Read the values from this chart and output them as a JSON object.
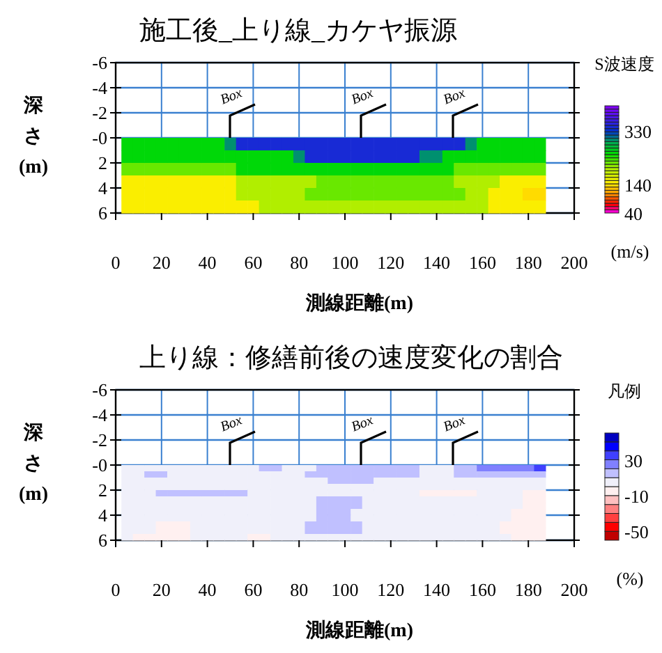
{
  "chart_data": [
    {
      "type": "heatmap",
      "title": "施工後_上り線_カケヤ振源",
      "xlabel": "測線距離(m)",
      "ylabel": "深さ(m)",
      "clabel": "S波速度(m/s)",
      "xlim": [
        0,
        200
      ],
      "xticks": [
        0,
        20,
        40,
        60,
        80,
        100,
        120,
        140,
        160,
        180,
        200
      ],
      "ylim": [
        6,
        -6
      ],
      "yticks": [
        -6,
        -4,
        -2,
        {
          "value": 0,
          "label": "-0"
        },
        2,
        4,
        6
      ],
      "grid": true,
      "clim": [
        40,
        420
      ],
      "cticks": [
        40,
        140,
        330
      ],
      "annotations": [
        "Box",
        "Box",
        "Box"
      ],
      "x": [
        5,
        10,
        15,
        20,
        25,
        30,
        35,
        40,
        45,
        50,
        55,
        60,
        65,
        70,
        75,
        80,
        85,
        90,
        95,
        100,
        105,
        110,
        115,
        120,
        125,
        130,
        135,
        140,
        145,
        150,
        155,
        160,
        165,
        170,
        175,
        180,
        185
      ],
      "y": [
        0.5,
        1.5,
        2.5,
        3.5,
        4.5,
        5.5
      ],
      "cells": [
        [
          250,
          250,
          250,
          250,
          250,
          250,
          250,
          250,
          250,
          300,
          340,
          340,
          340,
          340,
          340,
          340,
          340,
          340,
          340,
          340,
          340,
          340,
          340,
          340,
          340,
          340,
          340,
          340,
          340,
          340,
          300,
          250,
          250,
          250,
          250,
          250,
          250
        ],
        [
          250,
          250,
          250,
          250,
          250,
          250,
          250,
          250,
          250,
          250,
          250,
          250,
          250,
          250,
          250,
          300,
          340,
          340,
          340,
          340,
          340,
          340,
          340,
          340,
          340,
          340,
          300,
          300,
          250,
          250,
          250,
          250,
          250,
          250,
          250,
          250,
          250
        ],
        [
          220,
          220,
          220,
          220,
          220,
          220,
          220,
          220,
          220,
          220,
          250,
          250,
          250,
          250,
          250,
          250,
          250,
          250,
          250,
          250,
          250,
          250,
          250,
          250,
          250,
          250,
          250,
          250,
          250,
          220,
          220,
          220,
          220,
          220,
          220,
          220,
          220
        ],
        [
          150,
          150,
          150,
          150,
          150,
          150,
          150,
          150,
          150,
          150,
          190,
          190,
          190,
          190,
          190,
          190,
          190,
          220,
          220,
          220,
          220,
          220,
          220,
          220,
          220,
          220,
          220,
          220,
          220,
          190,
          190,
          190,
          190,
          150,
          150,
          150,
          150
        ],
        [
          150,
          150,
          150,
          150,
          150,
          150,
          150,
          150,
          150,
          150,
          190,
          190,
          190,
          190,
          190,
          190,
          220,
          220,
          220,
          220,
          220,
          220,
          220,
          220,
          220,
          220,
          220,
          220,
          220,
          220,
          190,
          190,
          150,
          150,
          150,
          140,
          140
        ],
        [
          150,
          150,
          150,
          150,
          150,
          150,
          150,
          150,
          150,
          150,
          150,
          150,
          190,
          190,
          190,
          190,
          190,
          190,
          190,
          190,
          190,
          190,
          190,
          190,
          190,
          190,
          190,
          190,
          190,
          190,
          190,
          190,
          150,
          150,
          150,
          150,
          150
        ]
      ]
    },
    {
      "type": "heatmap",
      "title": "上り線：修繕前後の速度変化の割合",
      "xlabel": "測線距離(m)",
      "ylabel": "深さ(m)",
      "clabel": "凡例(%)",
      "xlim": [
        0,
        200
      ],
      "xticks": [
        0,
        20,
        40,
        60,
        80,
        100,
        120,
        140,
        160,
        180,
        200
      ],
      "ylim": [
        6,
        -6
      ],
      "yticks": [
        -6,
        -4,
        -2,
        {
          "value": 0,
          "label": "-0"
        },
        2,
        4,
        6
      ],
      "grid": true,
      "clim": [
        -60,
        60
      ],
      "cticks": [
        -50,
        -10,
        30
      ],
      "annotations": [
        "Box",
        "Box",
        "Box"
      ],
      "x": [
        5,
        10,
        15,
        20,
        25,
        30,
        35,
        40,
        45,
        50,
        55,
        60,
        65,
        70,
        75,
        80,
        85,
        90,
        95,
        100,
        105,
        110,
        115,
        120,
        125,
        130,
        135,
        140,
        145,
        150,
        155,
        160,
        165,
        170,
        175,
        180,
        185
      ],
      "y": [
        0.25,
        0.75,
        1.25,
        1.75,
        2.25,
        2.75,
        3.25,
        3.75,
        4.25,
        4.75,
        5.25,
        5.75
      ],
      "cells": [
        [
          5,
          5,
          5,
          5,
          5,
          5,
          5,
          5,
          5,
          5,
          5,
          5,
          15,
          15,
          5,
          5,
          5,
          15,
          15,
          15,
          15,
          15,
          15,
          15,
          15,
          15,
          5,
          5,
          5,
          15,
          15,
          25,
          25,
          25,
          25,
          25,
          35
        ],
        [
          5,
          5,
          15,
          15,
          5,
          5,
          5,
          5,
          5,
          5,
          5,
          5,
          5,
          5,
          5,
          5,
          15,
          15,
          15,
          15,
          15,
          15,
          15,
          15,
          15,
          15,
          5,
          5,
          5,
          15,
          15,
          15,
          15,
          15,
          15,
          15,
          15
        ],
        [
          5,
          5,
          5,
          5,
          5,
          5,
          5,
          5,
          5,
          5,
          5,
          5,
          5,
          5,
          5,
          5,
          5,
          5,
          15,
          15,
          15,
          15,
          5,
          5,
          5,
          5,
          5,
          5,
          5,
          5,
          5,
          5,
          5,
          5,
          5,
          5,
          5
        ],
        [
          5,
          5,
          5,
          5,
          5,
          5,
          5,
          5,
          5,
          5,
          5,
          5,
          5,
          5,
          5,
          5,
          5,
          5,
          5,
          5,
          5,
          5,
          5,
          5,
          5,
          5,
          5,
          5,
          5,
          5,
          5,
          5,
          5,
          5,
          5,
          5,
          5
        ],
        [
          5,
          5,
          5,
          15,
          15,
          15,
          15,
          15,
          15,
          15,
          15,
          5,
          5,
          5,
          5,
          5,
          5,
          5,
          5,
          5,
          5,
          5,
          5,
          5,
          5,
          5,
          -5,
          -5,
          -5,
          -5,
          -5,
          5,
          5,
          5,
          5,
          -5,
          -5
        ],
        [
          5,
          5,
          5,
          5,
          5,
          5,
          5,
          5,
          5,
          5,
          5,
          5,
          5,
          5,
          5,
          5,
          5,
          15,
          15,
          15,
          15,
          5,
          5,
          5,
          5,
          5,
          5,
          5,
          5,
          5,
          5,
          5,
          5,
          5,
          5,
          -5,
          -5
        ],
        [
          5,
          5,
          5,
          5,
          5,
          5,
          5,
          5,
          5,
          5,
          5,
          5,
          5,
          5,
          5,
          5,
          5,
          15,
          15,
          15,
          15,
          5,
          5,
          5,
          5,
          5,
          5,
          5,
          5,
          5,
          5,
          5,
          5,
          5,
          5,
          -5,
          -5
        ],
        [
          5,
          5,
          5,
          5,
          5,
          5,
          5,
          5,
          5,
          5,
          5,
          5,
          5,
          5,
          5,
          5,
          5,
          15,
          15,
          15,
          5,
          5,
          5,
          5,
          5,
          5,
          5,
          5,
          5,
          5,
          5,
          5,
          5,
          5,
          -5,
          -5,
          -5
        ],
        [
          5,
          5,
          5,
          5,
          5,
          5,
          5,
          5,
          5,
          5,
          5,
          5,
          5,
          5,
          5,
          5,
          5,
          15,
          15,
          15,
          5,
          5,
          5,
          5,
          5,
          5,
          5,
          5,
          5,
          5,
          5,
          5,
          5,
          5,
          -5,
          -5,
          -5
        ],
        [
          5,
          5,
          5,
          -5,
          -5,
          -5,
          5,
          5,
          5,
          5,
          5,
          5,
          5,
          5,
          5,
          5,
          15,
          15,
          15,
          15,
          15,
          5,
          5,
          5,
          5,
          5,
          5,
          5,
          5,
          5,
          5,
          5,
          5,
          -5,
          -5,
          -5,
          -5
        ],
        [
          5,
          5,
          5,
          -5,
          -5,
          -5,
          5,
          5,
          5,
          5,
          5,
          5,
          5,
          5,
          5,
          5,
          15,
          15,
          15,
          15,
          15,
          5,
          5,
          5,
          5,
          5,
          5,
          5,
          5,
          5,
          5,
          5,
          5,
          -5,
          -5,
          -5,
          -5
        ],
        [
          5,
          -5,
          -5,
          -5,
          -5,
          -5,
          5,
          5,
          5,
          5,
          5,
          -5,
          -5,
          5,
          5,
          5,
          5,
          5,
          5,
          5,
          5,
          5,
          5,
          5,
          5,
          5,
          5,
          5,
          5,
          5,
          5,
          5,
          5,
          5,
          -5,
          -5,
          -5
        ]
      ]
    }
  ]
}
